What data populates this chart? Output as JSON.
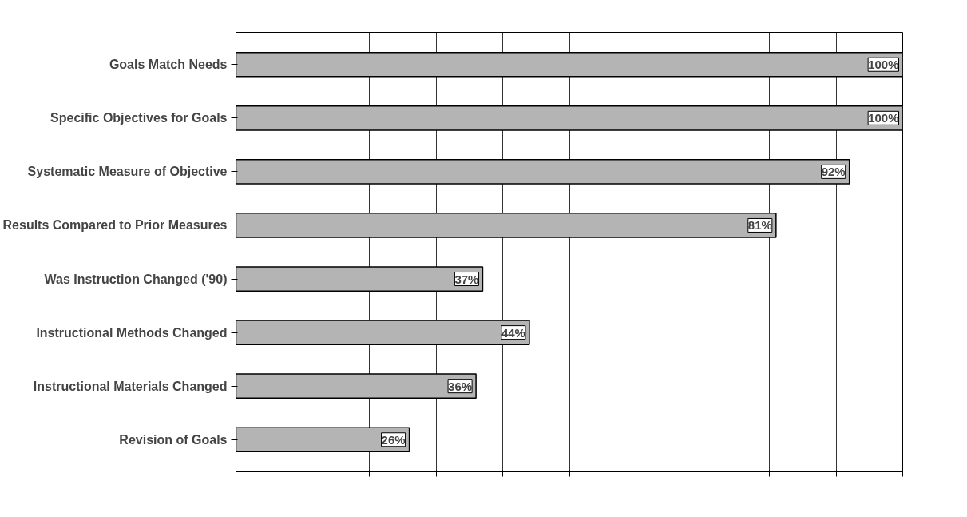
{
  "chart_data": {
    "type": "bar",
    "orientation": "horizontal",
    "categories": [
      "Goals Match Needs",
      "Specific Objectives for Goals",
      "Systematic Measure of Objective",
      "Results Compared to Prior Measures",
      "Was Instruction Changed ('90)",
      "Instructional Methods Changed",
      "Instructional Materials Changed",
      "Revision of Goals"
    ],
    "values": [
      100,
      100,
      92,
      81,
      37,
      44,
      36,
      26
    ],
    "value_labels": [
      "100%",
      "100%",
      "92%",
      "81%",
      "37%",
      "44%",
      "36%",
      "26%"
    ],
    "color": "#b4b4b4",
    "xlim": [
      0,
      100
    ],
    "xticks": [
      {
        "value": 0,
        "label": null
      },
      {
        "value": 10,
        "label": null
      },
      {
        "value": 20,
        "label": null
      },
      {
        "value": 30,
        "label": null
      },
      {
        "value": 40,
        "label": null
      },
      {
        "value": 50,
        "label": null
      },
      {
        "value": 60,
        "label": null
      },
      {
        "value": 70,
        "label": null
      },
      {
        "value": 80,
        "label": null
      },
      {
        "value": 90,
        "label": null
      },
      {
        "value": 100,
        "label": null
      }
    ],
    "grid": "x",
    "tick_labels": "y"
  }
}
